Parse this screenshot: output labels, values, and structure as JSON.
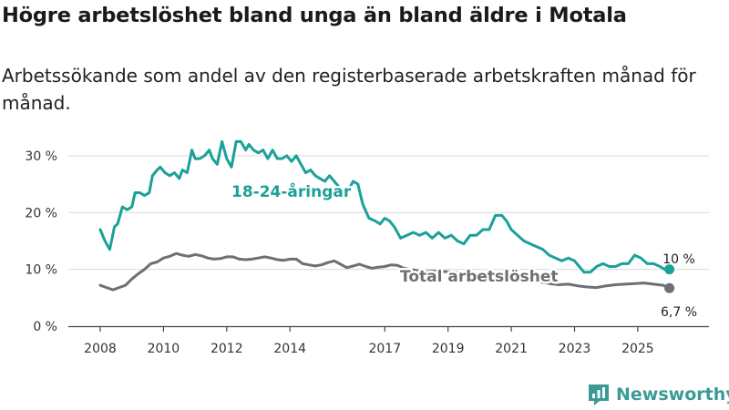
{
  "header": {
    "title": "Högre arbetslöshet bland unga än bland äldre i Motala",
    "subtitle": "Arbetssökande som andel av den registerbaserade arbetskraften månad för månad."
  },
  "brand": {
    "name": "Newsworthy",
    "color": "#3a9b96"
  },
  "chart_data": {
    "type": "line",
    "title": "Högre arbetslöshet bland unga än bland äldre i Motala",
    "subtitle": "Arbetssökande som andel av den registerbaserade arbetskraften månad för månad.",
    "xlabel": "",
    "ylabel": "",
    "xlim": [
      2008,
      2026.3
    ],
    "ylim": [
      0,
      34
    ],
    "y_ticks": [
      0,
      10,
      20,
      30
    ],
    "y_tick_labels": [
      "0 %",
      "10 %",
      "20 %",
      "30 %"
    ],
    "x_ticks": [
      2008,
      2010,
      2012,
      2014,
      2017,
      2019,
      2021,
      2023,
      2025
    ],
    "x_tick_labels": [
      "2008",
      "2010",
      "2012",
      "2014",
      "2017",
      "2019",
      "2021",
      "2023",
      "2025"
    ],
    "grid": true,
    "series": [
      {
        "name": "18-24-åringar",
        "color": "#1aa198",
        "x": [
          2008.0,
          2008.15,
          2008.3,
          2008.45,
          2008.55,
          2008.7,
          2008.85,
          2009.0,
          2009.1,
          2009.25,
          2009.4,
          2009.55,
          2009.65,
          2009.8,
          2009.9,
          2010.05,
          2010.2,
          2010.35,
          2010.5,
          2010.6,
          2010.75,
          2010.9,
          2011.0,
          2011.15,
          2011.3,
          2011.45,
          2011.55,
          2011.7,
          2011.85,
          2012.0,
          2012.15,
          2012.3,
          2012.45,
          2012.6,
          2012.7,
          2012.85,
          2013.0,
          2013.15,
          2013.3,
          2013.45,
          2013.6,
          2013.75,
          2013.9,
          2014.05,
          2014.2,
          2014.35,
          2014.5,
          2014.65,
          2014.8,
          2014.95,
          2015.1,
          2015.25,
          2015.4,
          2015.55,
          2015.7,
          2015.85,
          2016.0,
          2016.15,
          2016.3,
          2016.5,
          2016.7,
          2016.85,
          2017.0,
          2017.15,
          2017.3,
          2017.5,
          2017.7,
          2017.9,
          2018.1,
          2018.3,
          2018.5,
          2018.7,
          2018.9,
          2019.1,
          2019.3,
          2019.5,
          2019.7,
          2019.9,
          2020.1,
          2020.3,
          2020.5,
          2020.7,
          2020.85,
          2021.0,
          2021.2,
          2021.4,
          2021.6,
          2021.8,
          2022.0,
          2022.2,
          2022.4,
          2022.6,
          2022.8,
          2023.0,
          2023.15,
          2023.3,
          2023.5,
          2023.7,
          2023.9,
          2024.1,
          2024.3,
          2024.5,
          2024.7,
          2024.9,
          2025.1,
          2025.3,
          2025.5,
          2025.7,
          2025.85,
          2026.0
        ],
        "values": [
          17,
          15,
          13.5,
          17.5,
          18,
          21,
          20.5,
          21,
          23.5,
          23.5,
          23,
          23.5,
          26.5,
          27.5,
          28,
          27,
          26.5,
          27,
          26,
          27.5,
          27,
          31,
          29.5,
          29.5,
          30,
          31,
          29.5,
          28.5,
          32.5,
          29.5,
          28,
          32.5,
          32.5,
          31,
          32,
          31,
          30.5,
          31,
          29.5,
          31,
          29.5,
          29.5,
          30,
          29,
          30,
          28.5,
          27,
          27.5,
          26.5,
          26,
          25.5,
          26.5,
          25.5,
          24.5,
          23.5,
          24,
          25.5,
          25,
          21.5,
          19,
          18.5,
          18,
          19,
          18.5,
          17.5,
          15.5,
          16,
          16.5,
          16,
          16.5,
          15.5,
          16.5,
          15.5,
          16,
          15,
          14.5,
          16,
          16,
          17,
          17,
          19.5,
          19.5,
          18.5,
          17,
          16,
          15,
          14.5,
          14,
          13.5,
          12.5,
          12,
          11.5,
          12,
          11.5,
          10.5,
          9.5,
          9.5,
          10.5,
          11,
          10.5,
          10.5,
          11,
          11,
          12.5,
          12,
          11,
          11,
          10.5,
          10,
          10
        ]
      },
      {
        "name": "Total arbetslöshet",
        "color": "#6f6f73",
        "x": [
          2008.0,
          2008.2,
          2008.4,
          2008.6,
          2008.8,
          2009.0,
          2009.2,
          2009.4,
          2009.6,
          2009.8,
          2010.0,
          2010.2,
          2010.4,
          2010.6,
          2010.8,
          2011.0,
          2011.2,
          2011.4,
          2011.6,
          2011.8,
          2012.0,
          2012.2,
          2012.4,
          2012.6,
          2012.8,
          2013.0,
          2013.2,
          2013.4,
          2013.6,
          2013.8,
          2014.0,
          2014.2,
          2014.4,
          2014.6,
          2014.8,
          2015.0,
          2015.2,
          2015.4,
          2015.6,
          2015.8,
          2016.0,
          2016.2,
          2016.4,
          2016.6,
          2016.8,
          2017.0,
          2017.2,
          2017.4,
          2017.6,
          2017.8,
          2018.0,
          2018.3,
          2018.6,
          2018.9,
          2019.2,
          2019.5,
          2019.8,
          2020.1,
          2020.4,
          2020.7,
          2021.0,
          2021.3,
          2021.6,
          2021.9,
          2022.2,
          2022.5,
          2022.8,
          2023.1,
          2023.4,
          2023.7,
          2024.0,
          2024.3,
          2024.6,
          2024.9,
          2025.2,
          2025.5,
          2025.8,
          2026.0
        ],
        "values": [
          7.2,
          6.8,
          6.4,
          6.8,
          7.2,
          8.3,
          9.2,
          10,
          11,
          11.3,
          12,
          12.3,
          12.8,
          12.5,
          12.3,
          12.6,
          12.4,
          12,
          11.8,
          11.9,
          12.2,
          12.2,
          11.8,
          11.7,
          11.8,
          12,
          12.2,
          12,
          11.7,
          11.6,
          11.8,
          11.8,
          11,
          10.8,
          10.6,
          10.8,
          11.2,
          11.5,
          10.9,
          10.3,
          10.6,
          10.9,
          10.5,
          10.2,
          10.4,
          10.5,
          10.8,
          10.7,
          10.2,
          10,
          9.8,
          9.6,
          9.7,
          9.6,
          9.5,
          9.3,
          9.2,
          8.8,
          8.6,
          8.4,
          8.2,
          8,
          7.9,
          7.8,
          7.5,
          7.3,
          7.4,
          7.1,
          6.9,
          6.8,
          7.1,
          7.3,
          7.4,
          7.5,
          7.6,
          7.4,
          7.2,
          6.7
        ]
      }
    ],
    "annotations": [
      {
        "text": "18-24-åringar",
        "series": "18-24-åringar"
      },
      {
        "text": "Total arbetslöshet",
        "series": "Total arbetslöshet"
      },
      {
        "text": "10 %",
        "series": "18-24-åringar",
        "value": 10
      },
      {
        "text": "6,7 %",
        "series": "Total arbetslöshet",
        "value": 6.7
      }
    ]
  }
}
